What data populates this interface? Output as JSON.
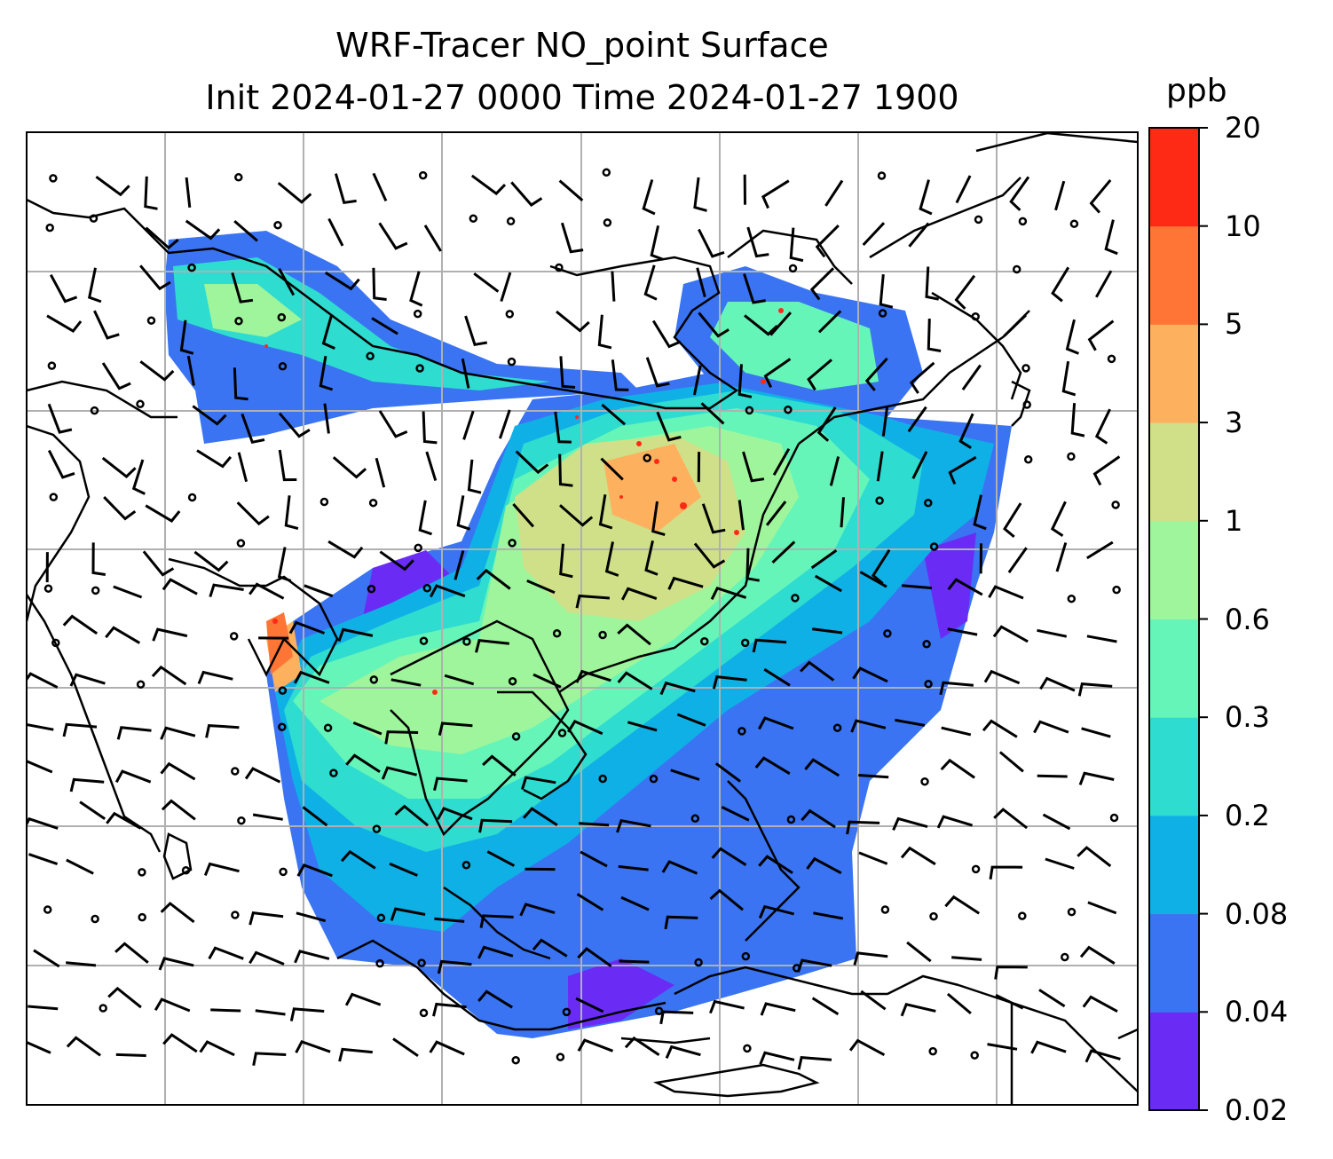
{
  "title": {
    "line1": "WRF-Tracer NO_point Surface",
    "line2": "Init 2024-01-27 0000 Time 2024-01-27 1900"
  },
  "map": {
    "variable": "NO_point",
    "level": "Surface",
    "overlay": "wind barbs",
    "gridlines": true
  },
  "colorbar": {
    "units": "ppb",
    "ticks": [
      "0.02",
      "0.04",
      "0.08",
      "0.2",
      "0.3",
      "0.6",
      "1",
      "3",
      "5",
      "10",
      "20"
    ],
    "colors": [
      "#6a2cf5",
      "#3a74f2",
      "#0fb0e6",
      "#2fdcd0",
      "#66f5b8",
      "#9ef59c",
      "#cfe088",
      "#fdb15e",
      "#ff7535",
      "#ff2a16"
    ]
  }
}
